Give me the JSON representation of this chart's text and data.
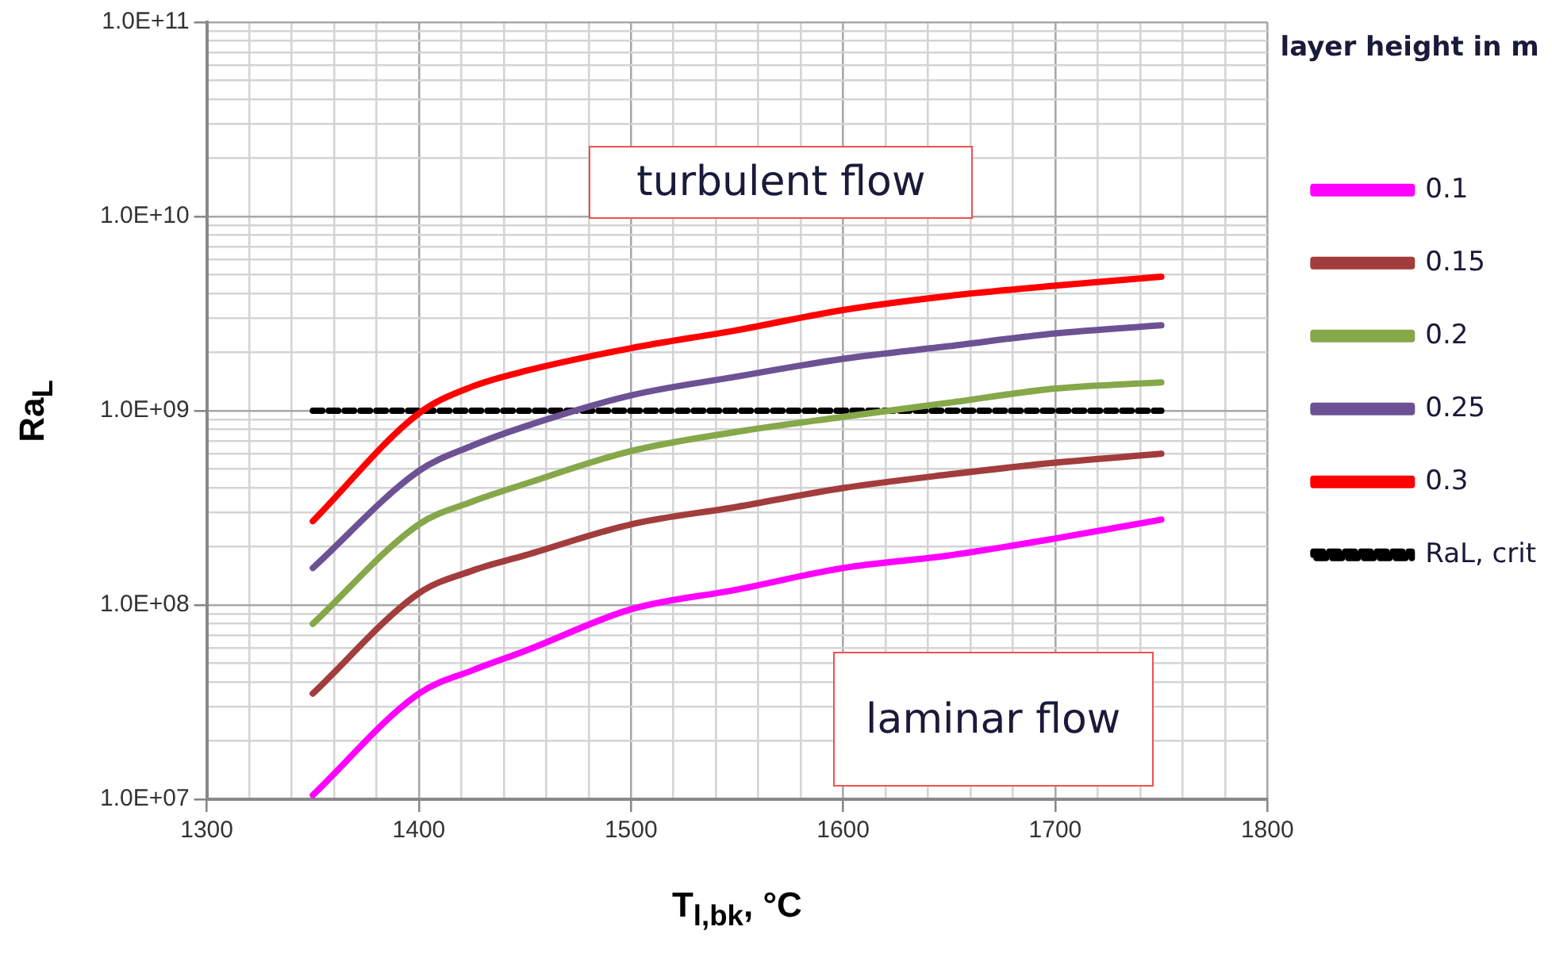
{
  "chart_data": {
    "type": "line",
    "xlabel": "T$_{l,bk}$, °C",
    "ylabel": "Ra$_{L}$",
    "legend_title": "layer height in m",
    "legend": "right",
    "grid": true,
    "log": "y",
    "marker": "none",
    "x": [
      1350,
      1400,
      1425,
      1450,
      1500,
      1550,
      1600,
      1650,
      1700,
      1750
    ],
    "xlim": [
      1300,
      1800
    ],
    "xticks": [
      1300,
      {
        "value": 1320,
        "label": null
      },
      {
        "value": 1340,
        "label": null
      },
      {
        "value": 1360,
        "label": null
      },
      {
        "value": 1380,
        "label": null
      },
      1400,
      {
        "value": 1420,
        "label": null
      },
      {
        "value": 1440,
        "label": null
      },
      {
        "value": 1460,
        "label": null
      },
      {
        "value": 1480,
        "label": null
      },
      1500,
      {
        "value": 1520,
        "label": null
      },
      {
        "value": 1540,
        "label": null
      },
      {
        "value": 1560,
        "label": null
      },
      {
        "value": 1580,
        "label": null
      },
      1600,
      {
        "value": 1620,
        "label": null
      },
      {
        "value": 1640,
        "label": null
      },
      {
        "value": 1660,
        "label": null
      },
      {
        "value": 1680,
        "label": null
      },
      1700,
      {
        "value": 1720,
        "label": null
      },
      {
        "value": 1740,
        "label": null
      },
      {
        "value": 1760,
        "label": null
      },
      {
        "value": 1780,
        "label": null
      },
      1800
    ],
    "ylim": [
      10000000.0,
      100000000000.0
    ],
    "yticks": [
      {
        "value": 10000000.0,
        "label": "1.0E+07"
      },
      {
        "value": 20000000.0,
        "label": null
      },
      {
        "value": 30000000.0,
        "label": null
      },
      {
        "value": 40000000.0,
        "label": null
      },
      {
        "value": 50000000.0,
        "label": null
      },
      {
        "value": 60000000.0,
        "label": null
      },
      {
        "value": 70000000.0,
        "label": null
      },
      {
        "value": 80000000.0,
        "label": null
      },
      {
        "value": 90000000.0,
        "label": null
      },
      {
        "value": 100000000.0,
        "label": "1.0E+08"
      },
      {
        "value": 200000000.0,
        "label": null
      },
      {
        "value": 300000000.0,
        "label": null
      },
      {
        "value": 400000000.0,
        "label": null
      },
      {
        "value": 500000000.0,
        "label": null
      },
      {
        "value": 600000000.0,
        "label": null
      },
      {
        "value": 700000000.0,
        "label": null
      },
      {
        "value": 800000000.0,
        "label": null
      },
      {
        "value": 900000000.0,
        "label": null
      },
      {
        "value": 1000000000.0,
        "label": "1.0E+09"
      },
      {
        "value": 2000000000.0,
        "label": null
      },
      {
        "value": 3000000000.0,
        "label": null
      },
      {
        "value": 4000000000.0,
        "label": null
      },
      {
        "value": 5000000000.0,
        "label": null
      },
      {
        "value": 6000000000.0,
        "label": null
      },
      {
        "value": 7000000000.0,
        "label": null
      },
      {
        "value": 8000000000.0,
        "label": null
      },
      {
        "value": 9000000000.0,
        "label": null
      },
      {
        "value": 10000000000.0,
        "label": "1.0E+10"
      },
      {
        "value": 20000000000.0,
        "label": null
      },
      {
        "value": 30000000000.0,
        "label": null
      },
      {
        "value": 40000000000.0,
        "label": null
      },
      {
        "value": 50000000000.0,
        "label": null
      },
      {
        "value": 60000000000.0,
        "label": null
      },
      {
        "value": 70000000000.0,
        "label": null
      },
      {
        "value": 80000000000.0,
        "label": null
      },
      {
        "value": 90000000000.0,
        "label": null
      },
      {
        "value": 100000000000.0,
        "label": "1.0E+11"
      }
    ],
    "series": [
      {
        "name": "0.1",
        "color": "#ff00ff",
        "values": [
          10500000.0,
          35000000.0,
          46000000.0,
          58000000.0,
          95000000.0,
          120000000.0,
          155000000.0,
          180000000.0,
          220000000.0,
          275000000.0
        ]
      },
      {
        "name": "0.15",
        "color": "#a33c3c",
        "values": [
          35000000.0,
          115000000.0,
          150000000.0,
          180000000.0,
          260000000.0,
          320000000.0,
          400000000.0,
          470000000.0,
          540000000.0,
          600000000.0
        ]
      },
      {
        "name": "0.2",
        "color": "#86a84a",
        "values": [
          80000000.0,
          260000000.0,
          340000000.0,
          420000000.0,
          620000000.0,
          780000000.0,
          930000000.0,
          1100000000.0,
          1300000000.0,
          1400000000.0
        ]
      },
      {
        "name": "0.25",
        "color": "#6c5294",
        "values": [
          155000000.0,
          490000000.0,
          660000000.0,
          830000000.0,
          1200000000.0,
          1500000000.0,
          1850000000.0,
          2150000000.0,
          2500000000.0,
          2750000000.0
        ]
      },
      {
        "name": "0.3",
        "color": "#ff0000",
        "values": [
          270000000.0,
          970000000.0,
          1330000000.0,
          1600000000.0,
          2100000000.0,
          2600000000.0,
          3300000000.0,
          3900000000.0,
          4400000000.0,
          4900000000.0
        ]
      },
      {
        "name": "RaL, crit",
        "color": "#000000",
        "line_style": "dashed",
        "x": [
          1350,
          1750
        ],
        "values": [
          1000000000.0,
          1000000000.0
        ]
      }
    ],
    "annotations": [
      "turbulent flow",
      "laminar flow"
    ]
  }
}
